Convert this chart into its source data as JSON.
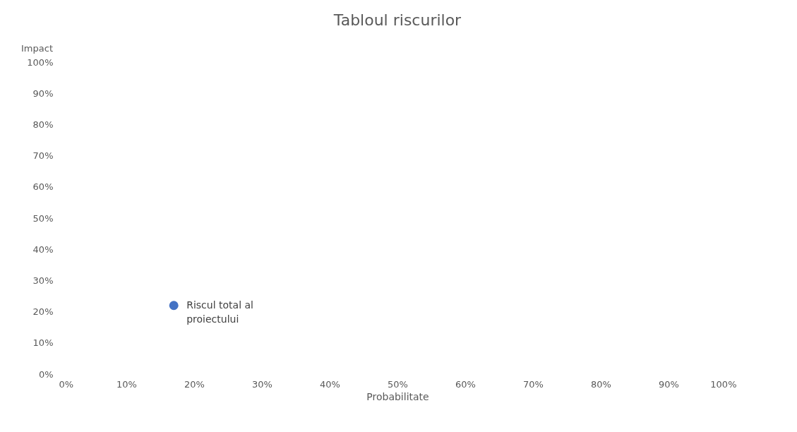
{
  "chart_data": {
    "type": "scatter",
    "title": "Tabloul riscurilor",
    "xlabel": "Probabilitate",
    "ylabel": "Impact",
    "x": [
      17
    ],
    "series": [
      {
        "name": "Riscul total al proiectului",
        "color": "#4472c4",
        "values": [
          22
        ]
      }
    ],
    "xlim": [
      0,
      100
    ],
    "ylim": [
      0,
      100
    ],
    "xticks": [
      {
        "value": 0,
        "label": "0%"
      },
      {
        "value": 10,
        "label": "10%"
      },
      {
        "value": 20,
        "label": "20%"
      },
      {
        "value": 30,
        "label": "30%"
      },
      {
        "value": 40,
        "label": "40%"
      },
      {
        "value": 50,
        "label": "50%"
      },
      {
        "value": 60,
        "label": "60%"
      },
      {
        "value": 70,
        "label": "70%"
      },
      {
        "value": 80,
        "label": "80%"
      },
      {
        "value": 90,
        "label": "90%"
      },
      {
        "value": 100,
        "label": "100%"
      }
    ],
    "yticks": [
      {
        "value": 0,
        "label": "0%"
      },
      {
        "value": 10,
        "label": "10%"
      },
      {
        "value": 20,
        "label": "20%"
      },
      {
        "value": 30,
        "label": "30%"
      },
      {
        "value": 40,
        "label": "40%"
      },
      {
        "value": 50,
        "label": "50%"
      },
      {
        "value": 60,
        "label": "60%"
      },
      {
        "value": 70,
        "label": "70%"
      },
      {
        "value": 80,
        "label": "80%"
      },
      {
        "value": 90,
        "label": "90%"
      },
      {
        "value": 100,
        "label": "100%"
      }
    ],
    "marker": "circle",
    "grid": false
  }
}
